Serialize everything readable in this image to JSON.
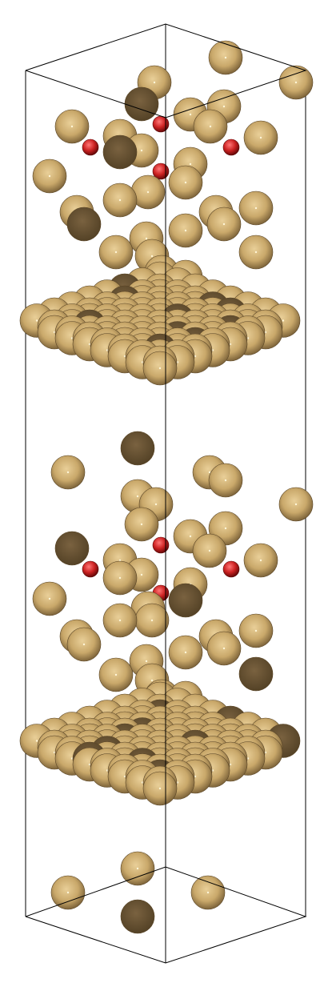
{
  "scene": {
    "background": "#ffffff",
    "cell_edge_color": "#000000",
    "atoms": [
      {
        "element": "Au",
        "color": "#c9a86a",
        "count": 243
      },
      {
        "element": "O",
        "color": "#cc2222",
        "count": 8
      }
    ]
  }
}
